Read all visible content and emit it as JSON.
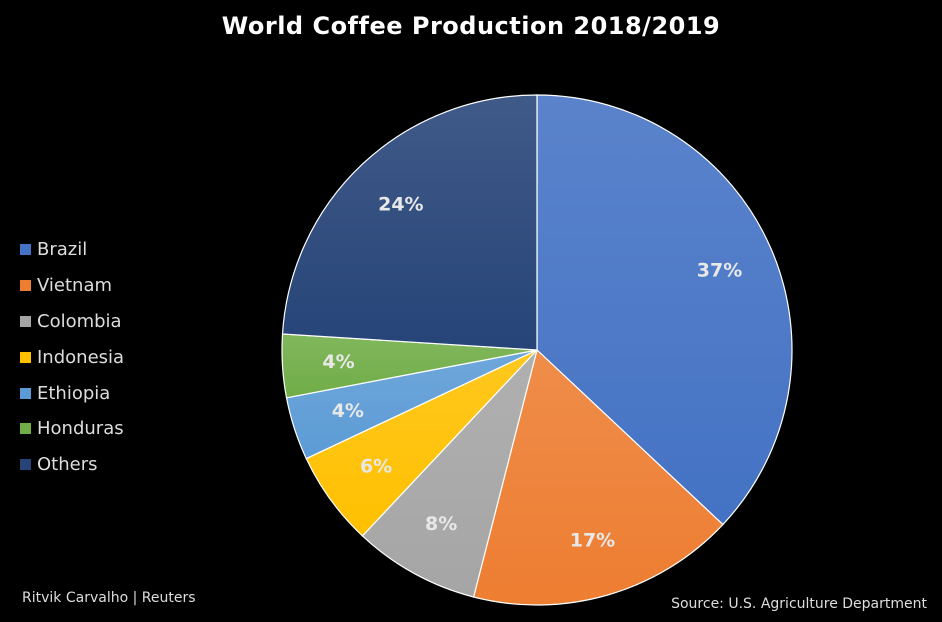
{
  "chart_data": {
    "type": "pie",
    "title": "World Coffee Production 2018/2019",
    "categories": [
      "Brazil",
      "Vietnam",
      "Colombia",
      "Indonesia",
      "Ethiopia",
      "Honduras",
      "Others"
    ],
    "values": [
      37,
      17,
      8,
      6,
      4,
      4,
      24
    ],
    "labels": [
      "37%",
      "17%",
      "8%",
      "6%",
      "4%",
      "4%",
      "24%"
    ],
    "colors": [
      "#4472C4",
      "#ED7D31",
      "#A5A5A5",
      "#FFC000",
      "#5B9BD5",
      "#70AD47",
      "#264478"
    ],
    "legend": {
      "position": "left",
      "order": [
        "Brazil",
        "Vietnam",
        "Colombia",
        "Indonesia",
        "Ethiopia",
        "Honduras",
        "Others"
      ]
    },
    "slice_order_clockwise_from_top": [
      "Brazil",
      "Vietnam",
      "Colombia",
      "Indonesia",
      "Ethiopia",
      "Honduras",
      "Others"
    ]
  },
  "footer": {
    "credit": "Ritvik Carvalho | Reuters",
    "source": "Source: U.S. Agriculture Department"
  }
}
